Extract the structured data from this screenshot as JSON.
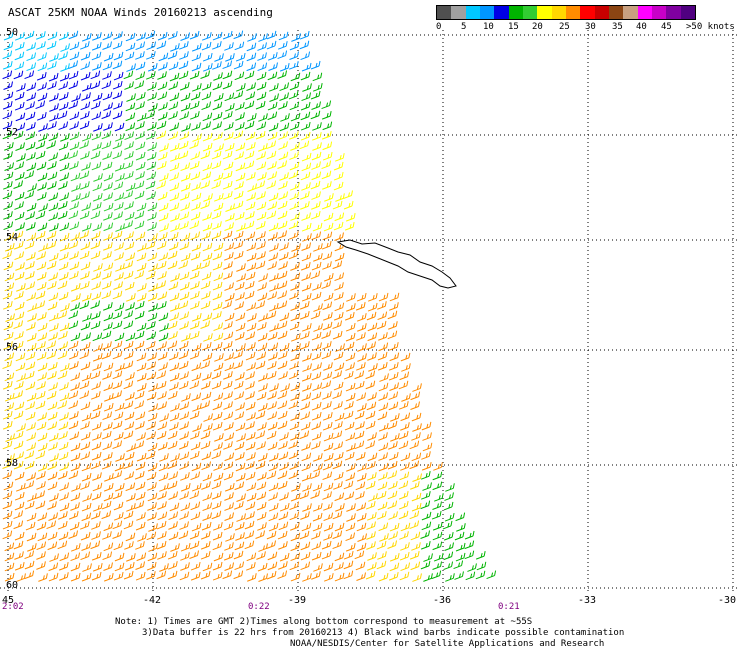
{
  "title": "ASCAT 25KM NOAA Winds 20160213 ascending",
  "legend": {
    "colors": [
      "#505050",
      "#a0a0a0",
      "#00c8ff",
      "#0096ff",
      "#0000e6",
      "#00b400",
      "#32cd32",
      "#ffff00",
      "#ffd700",
      "#ff8c00",
      "#ff0000",
      "#c80000",
      "#8b4513",
      "#c8a080",
      "#ff00ff",
      "#c800c8",
      "#8000a0",
      "#500080"
    ],
    "labels": [
      {
        "text": "0"
      },
      {
        "text": "5"
      },
      {
        "text": "10"
      },
      {
        "text": "15"
      },
      {
        "text": "20"
      },
      {
        "text": "25"
      },
      {
        "text": "30"
      },
      {
        "text": "35"
      },
      {
        "text": "40"
      },
      {
        "text": "45"
      },
      {
        "text": ">50 knots"
      }
    ]
  },
  "axes": {
    "lat_labels": [
      "50",
      "52",
      "54",
      "56",
      "58",
      "60"
    ],
    "lon_labels": [
      "45",
      "-42",
      "-39",
      "-36",
      "-33",
      "-30"
    ],
    "time_labels": [
      "2:02",
      "0:22",
      "0:21"
    ]
  },
  "notes": {
    "line1": "Note: 1) Times are GMT 2)Times along bottom correspond to measurement at ~55S",
    "line2": "3)Data buffer is 22 hrs from 20160213 4) Black wind barbs indicate possible contamination",
    "line3": "NOAA/NESDIS/Center for Satellite Applications and Research"
  }
}
